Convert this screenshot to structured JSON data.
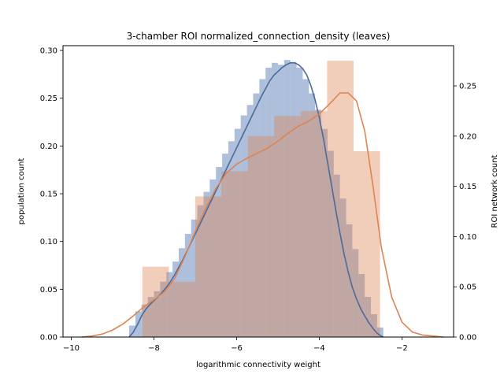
{
  "chart_data": {
    "type": "bar",
    "title": "3-chamber ROI normalized_connection_density (leaves)",
    "xlabel": "logarithmic connectivity weight",
    "ylabel_left": "population count",
    "ylabel_right": "ROI network count",
    "xlim": [
      -10.2,
      -0.75
    ],
    "ylim_left": [
      0,
      0.305
    ],
    "ylim_right": [
      0,
      0.29
    ],
    "x_ticks": [
      -10,
      -8,
      -6,
      -4,
      -2
    ],
    "y_ticks_left": [
      0.0,
      0.05,
      0.1,
      0.15,
      0.2,
      0.25,
      0.3
    ],
    "y_ticks_right": [
      0.0,
      0.05,
      0.1,
      0.15,
      0.2,
      0.25
    ],
    "grid": false,
    "series": [
      {
        "axis": "left",
        "color": "#4c72b0",
        "bar_alpha": 0.45,
        "bin_edges": [
          -8.6,
          -8.45,
          -8.3,
          -8.15,
          -8.0,
          -7.85,
          -7.7,
          -7.55,
          -7.4,
          -7.25,
          -7.1,
          -6.95,
          -6.8,
          -6.65,
          -6.5,
          -6.35,
          -6.2,
          -6.05,
          -5.9,
          -5.75,
          -5.6,
          -5.45,
          -5.3,
          -5.15,
          -5.0,
          -4.85,
          -4.7,
          -4.55,
          -4.4,
          -4.25,
          -4.1,
          -3.95,
          -3.8,
          -3.65,
          -3.5,
          -3.35,
          -3.2,
          -3.05,
          -2.9,
          -2.75,
          -2.6,
          -2.45
        ],
        "values": [
          0.012,
          0.027,
          0.034,
          0.042,
          0.048,
          0.058,
          0.068,
          0.079,
          0.093,
          0.108,
          0.123,
          0.138,
          0.152,
          0.165,
          0.178,
          0.192,
          0.205,
          0.218,
          0.232,
          0.243,
          0.255,
          0.27,
          0.282,
          0.287,
          0.285,
          0.29,
          0.288,
          0.282,
          0.27,
          0.255,
          0.238,
          0.218,
          0.195,
          0.17,
          0.145,
          0.118,
          0.092,
          0.066,
          0.042,
          0.024,
          0.01
        ],
        "kde_x": [
          -8.6,
          -8.5,
          -8.4,
          -8.3,
          -8.2,
          -8.1,
          -8.0,
          -7.9,
          -7.8,
          -7.7,
          -7.6,
          -7.5,
          -7.4,
          -7.3,
          -7.2,
          -7.1,
          -7.0,
          -6.9,
          -6.8,
          -6.7,
          -6.6,
          -6.5,
          -6.4,
          -6.3,
          -6.2,
          -6.1,
          -6.0,
          -5.9,
          -5.8,
          -5.7,
          -5.6,
          -5.5,
          -5.4,
          -5.3,
          -5.2,
          -5.1,
          -5.0,
          -4.9,
          -4.8,
          -4.7,
          -4.6,
          -4.5,
          -4.4,
          -4.3,
          -4.2,
          -4.1,
          -4.0,
          -3.9,
          -3.8,
          -3.7,
          -3.6,
          -3.5,
          -3.4,
          -3.3,
          -3.2,
          -3.1,
          -3.0,
          -2.9,
          -2.8,
          -2.7,
          -2.6,
          -2.5,
          -2.45
        ],
        "kde_y": [
          0.0,
          0.005,
          0.013,
          0.022,
          0.029,
          0.034,
          0.038,
          0.042,
          0.047,
          0.052,
          0.058,
          0.065,
          0.073,
          0.081,
          0.09,
          0.099,
          0.108,
          0.117,
          0.126,
          0.135,
          0.144,
          0.153,
          0.162,
          0.171,
          0.18,
          0.189,
          0.198,
          0.207,
          0.216,
          0.225,
          0.234,
          0.243,
          0.252,
          0.26,
          0.268,
          0.274,
          0.278,
          0.282,
          0.285,
          0.287,
          0.287,
          0.285,
          0.281,
          0.274,
          0.263,
          0.248,
          0.23,
          0.208,
          0.183,
          0.158,
          0.133,
          0.109,
          0.087,
          0.068,
          0.052,
          0.04,
          0.03,
          0.022,
          0.015,
          0.009,
          0.004,
          0.001,
          0.0
        ]
      },
      {
        "axis": "right",
        "color": "#dd8452",
        "bar_alpha": 0.4,
        "bin_edges": [
          -8.28,
          -7.64,
          -7.0,
          -6.37,
          -5.73,
          -5.09,
          -4.45,
          -3.81,
          -3.17,
          -2.53
        ],
        "values": [
          0.07,
          0.055,
          0.14,
          0.165,
          0.2,
          0.22,
          0.225,
          0.275,
          0.185
        ],
        "kde_x": [
          -9.75,
          -9.5,
          -9.25,
          -9.0,
          -8.75,
          -8.5,
          -8.25,
          -8.0,
          -7.75,
          -7.5,
          -7.25,
          -7.0,
          -6.75,
          -6.5,
          -6.25,
          -6.0,
          -5.75,
          -5.5,
          -5.25,
          -5.0,
          -4.75,
          -4.5,
          -4.25,
          -4.0,
          -3.75,
          -3.5,
          -3.3,
          -3.1,
          -2.9,
          -2.7,
          -2.5,
          -2.25,
          -2.0,
          -1.75,
          -1.5,
          -1.25,
          -1.0
        ],
        "kde_y": [
          0.0,
          0.001,
          0.003,
          0.007,
          0.013,
          0.021,
          0.03,
          0.037,
          0.045,
          0.058,
          0.08,
          0.105,
          0.128,
          0.148,
          0.163,
          0.172,
          0.178,
          0.183,
          0.188,
          0.195,
          0.203,
          0.21,
          0.215,
          0.222,
          0.232,
          0.243,
          0.243,
          0.235,
          0.205,
          0.15,
          0.09,
          0.04,
          0.015,
          0.005,
          0.002,
          0.001,
          0.0
        ]
      }
    ]
  }
}
